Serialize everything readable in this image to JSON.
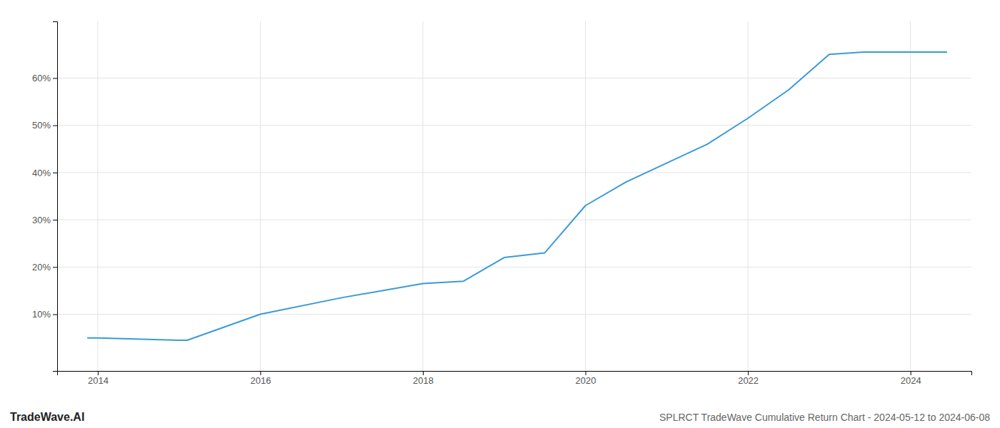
{
  "chart_data": {
    "type": "line",
    "title": "SPLRCT TradeWave Cumulative Return Chart - 2024-05-12 to 2024-06-08",
    "annotations": [
      "TradeWave.AI"
    ],
    "x": [
      2013.87,
      2014.0,
      2015.0,
      2015.1,
      2016.0,
      2017.0,
      2018.0,
      2018.5,
      2019.0,
      2019.5,
      2020.0,
      2020.5,
      2021.0,
      2021.5,
      2022.0,
      2022.5,
      2023.0,
      2023.42,
      2023.5,
      2024.0,
      2024.45
    ],
    "values": [
      5.0,
      5.0,
      4.5,
      4.5,
      10.0,
      13.5,
      16.5,
      17.0,
      22.0,
      23.0,
      33.0,
      38.0,
      42.0,
      46.0,
      51.5,
      57.5,
      65.0,
      65.5,
      65.5,
      65.5,
      65.5
    ],
    "color": "#3a9ad9",
    "xlim": [
      2013.5,
      2024.75
    ],
    "ylim": [
      -2,
      72
    ],
    "xticks": [
      2014,
      2016,
      2018,
      2020,
      2022,
      2024
    ],
    "yticks": [
      {
        "value": 10,
        "label": "10%"
      },
      {
        "value": 20,
        "label": "20%"
      },
      {
        "value": 30,
        "label": "30%"
      },
      {
        "value": 40,
        "label": "40%"
      },
      {
        "value": 50,
        "label": "50%"
      },
      {
        "value": 60,
        "label": "60%"
      }
    ],
    "grid": true
  }
}
